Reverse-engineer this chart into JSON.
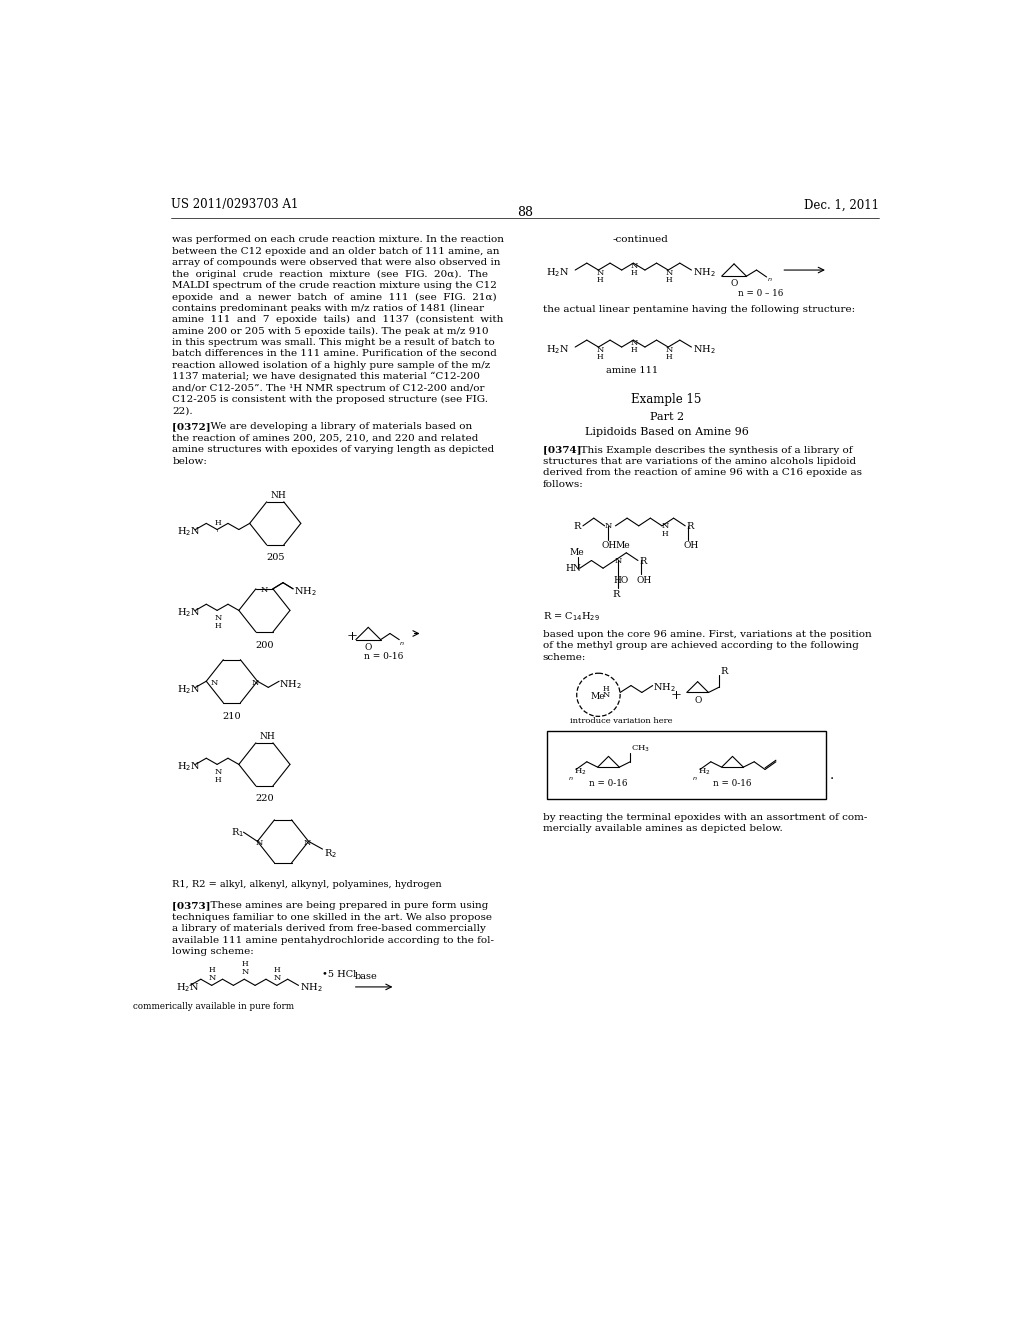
{
  "page_width": 10.24,
  "page_height": 13.2,
  "background_color": "#ffffff",
  "header_left": "US 2011/0293703 A1",
  "header_right": "Dec. 1, 2011",
  "page_number": "88",
  "text_fontsize": 7.5,
  "body_text_left": [
    "was performed on each crude reaction mixture. In the reaction",
    "between the C12 epoxide and an older batch of 111 amine, an",
    "array of compounds were observed that were also observed in",
    "the  original  crude  reaction  mixture  (see  FIG.  20α).  The",
    "MALDI spectrum of the crude reaction mixture using the C12",
    "epoxide  and  a  newer  batch  of  amine  111  (see  FIG.  21α)",
    "contains predominant peaks with m/z ratios of 1481 (linear",
    "amine  111  and  7  epoxide  tails)  and  1137  (consistent  with",
    "amine 200 or 205 with 5 epoxide tails). The peak at m/z 910",
    "in this spectrum was small. This might be a result of batch to",
    "batch differences in the 111 amine. Purification of the second",
    "reaction allowed isolation of a highly pure sample of the m/z",
    "1137 material; we have designated this material “C12-200",
    "and/or C12-205”. The ¹H NMR spectrum of C12-200 and/or",
    "C12-205 is consistent with the proposed structure (see FIG.",
    "22)."
  ],
  "para_0372_text": [
    "[0372]   We are developing a library of materials based on",
    "the reaction of amines 200, 205, 210, and 220 and related",
    "amine structures with epoxides of varying length as depicted",
    "below:"
  ],
  "right_col_text1": "-continued",
  "right_col_text2": "the actual linear pentamine having the following structure:",
  "right_col_text3": "amine 111",
  "right_col_text4": "Example 15",
  "right_col_text5": "Part 2",
  "right_col_text6": "Lipidoids Based on Amine 96",
  "right_col_para0374": "[0374]   This Example describes the synthesis of a library of",
  "right_col_para0374_2": "structures that are variations of the amino alcohols lipidoid",
  "right_col_para0374_3": "derived from the reaction of amine 96 with a C16 epoxide as",
  "right_col_para0374_4": "follows:",
  "right_col_text_r": "R = C$_{14}$H$_{29}$",
  "right_col_text_based": "based upon the core 96 amine. First, variations at the position",
  "right_col_text_based2": "of the methyl group are achieved according to the following",
  "right_col_text_based3": "scheme:",
  "right_col_text_intro": "introduce variation here",
  "bottom_left_para0373": "[0373]   These amines are being prepared in pure form using",
  "bottom_left_para0373_2": "techniques familiar to one skilled in the art. We also propose",
  "bottom_left_para0373_3": "a library of materials derived from free-based commercially",
  "bottom_left_para0373_4": "available 111 amine pentahydrochloride according to the fol-",
  "bottom_left_para0373_5": "lowing scheme:",
  "bottom_left_text_comm": "commerically available in pure form",
  "bottom_right_text_by": "by reacting the terminal epoxides with an assortment of com-",
  "bottom_right_text_by2": "mercially available amines as depicted below.",
  "n_label1": "n = 0 – 16",
  "n_label2": "n = 0-16",
  "n_label_box1": "n = 0-16",
  "n_label_box2": "n = 0-16",
  "r1r2_text": "R1, R2 = alkyl, alkenyl, alkynyl, polyamines, hydrogen",
  "hcl_text": "•5 HCl",
  "base_text": "base"
}
